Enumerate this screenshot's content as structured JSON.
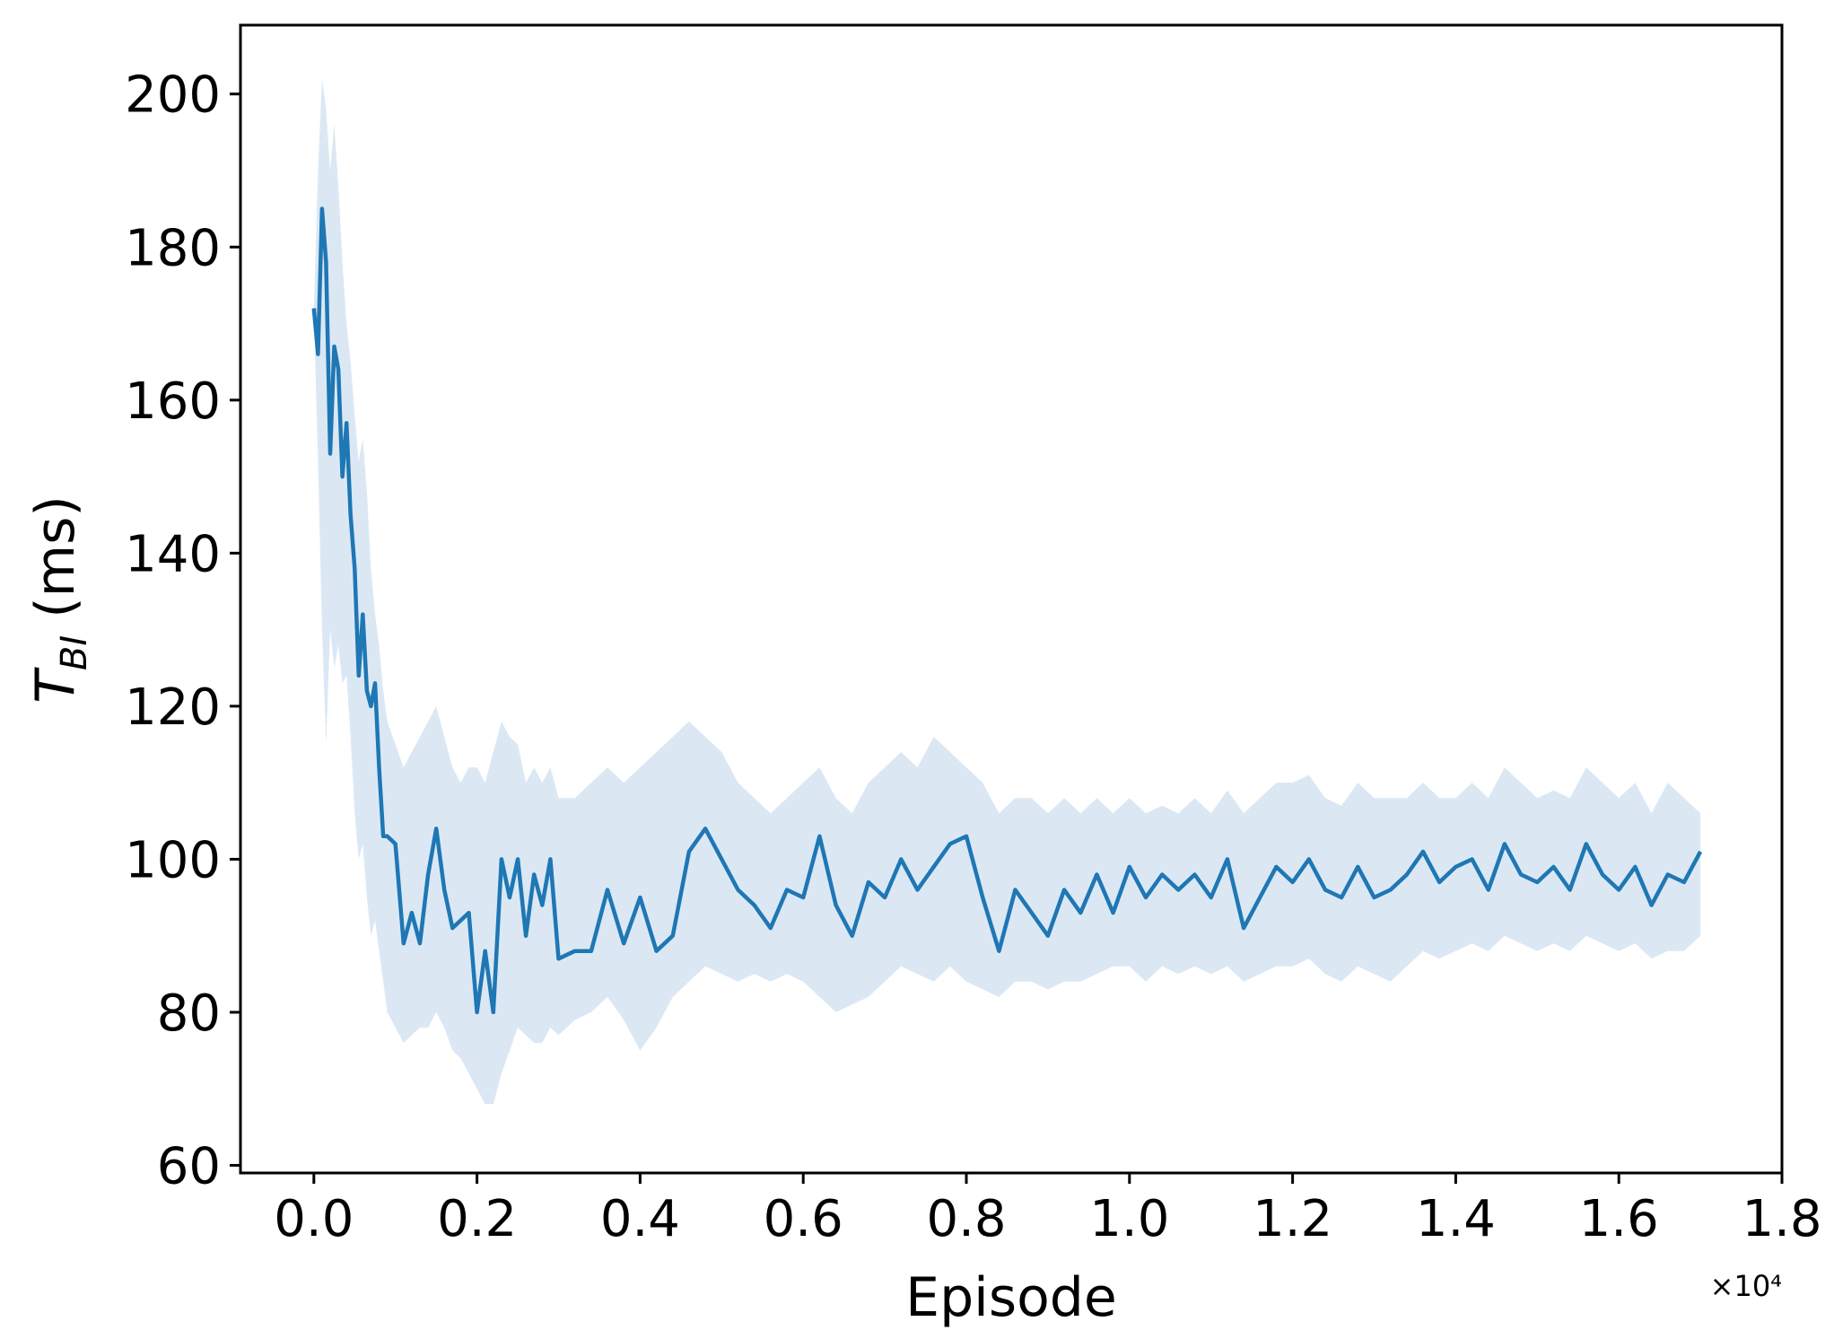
{
  "chart_data": {
    "type": "line",
    "title": "",
    "xlabel": "Episode",
    "ylabel": "T_BI (ms)",
    "ylabel_main": "T",
    "ylabel_sub": "BI",
    "ylabel_rest": " (ms)",
    "x_offset_label": "×10⁴",
    "xlim": [
      -0.09,
      1.8
    ],
    "ylim": [
      59,
      209
    ],
    "xticks": [
      0.0,
      0.2,
      0.4,
      0.6,
      0.8,
      1.0,
      1.2,
      1.4,
      1.6,
      1.8
    ],
    "xtick_labels": [
      "0.0",
      "0.2",
      "0.4",
      "0.6",
      "0.8",
      "1.0",
      "1.2",
      "1.4",
      "1.6",
      "1.8"
    ],
    "yticks": [
      60,
      80,
      100,
      120,
      140,
      160,
      180,
      200
    ],
    "ytick_labels": [
      "60",
      "80",
      "100",
      "120",
      "140",
      "160",
      "180",
      "200"
    ],
    "grid": false,
    "legend": "none",
    "colors": {
      "line": "#1f77b4",
      "band": "#dbe8f4"
    },
    "series": [
      {
        "x": [
          0.0,
          0.005,
          0.01,
          0.015,
          0.02,
          0.025,
          0.03,
          0.035,
          0.04,
          0.045,
          0.05,
          0.055,
          0.06,
          0.065,
          0.07,
          0.075,
          0.08,
          0.085,
          0.09,
          0.1,
          0.11,
          0.12,
          0.13,
          0.14,
          0.15,
          0.16,
          0.17,
          0.18,
          0.19,
          0.2,
          0.21,
          0.22,
          0.23,
          0.24,
          0.25,
          0.26,
          0.27,
          0.28,
          0.29,
          0.3,
          0.32,
          0.34,
          0.36,
          0.38,
          0.4,
          0.42,
          0.44,
          0.46,
          0.48,
          0.5,
          0.52,
          0.54,
          0.56,
          0.58,
          0.6,
          0.62,
          0.64,
          0.66,
          0.68,
          0.7,
          0.72,
          0.74,
          0.76,
          0.78,
          0.8,
          0.82,
          0.84,
          0.86,
          0.88,
          0.9,
          0.92,
          0.94,
          0.96,
          0.98,
          1.0,
          1.02,
          1.04,
          1.06,
          1.08,
          1.1,
          1.12,
          1.14,
          1.16,
          1.18,
          1.2,
          1.22,
          1.24,
          1.26,
          1.28,
          1.3,
          1.32,
          1.34,
          1.36,
          1.38,
          1.4,
          1.42,
          1.44,
          1.46,
          1.48,
          1.5,
          1.52,
          1.54,
          1.56,
          1.58,
          1.6,
          1.62,
          1.64,
          1.66,
          1.68,
          1.7
        ],
        "y": [
          172,
          166,
          185,
          178,
          153,
          167,
          164,
          150,
          157,
          145,
          138,
          124,
          132,
          122,
          120,
          123,
          112,
          103,
          103,
          102,
          89,
          93,
          89,
          98,
          104,
          96,
          91,
          92,
          93,
          80,
          88,
          80,
          100,
          95,
          100,
          90,
          98,
          94,
          100,
          87,
          88,
          88,
          96,
          89,
          95,
          88,
          90,
          101,
          104,
          100,
          96,
          94,
          91,
          96,
          95,
          103,
          94,
          90,
          97,
          95,
          100,
          96,
          99,
          102,
          103,
          95,
          88,
          96,
          93,
          90,
          96,
          93,
          98,
          93,
          99,
          95,
          98,
          96,
          98,
          95,
          100,
          91,
          95,
          99,
          97,
          100,
          96,
          95,
          99,
          95,
          96,
          98,
          101,
          97,
          99,
          100,
          96,
          102,
          98,
          97,
          99,
          96,
          102,
          98,
          96,
          99,
          94,
          98,
          97,
          101
        ],
        "lower": [
          172,
          152,
          130,
          115,
          130,
          125,
          128,
          123,
          124,
          116,
          106,
          100,
          102,
          95,
          90,
          92,
          88,
          84,
          80,
          78,
          76,
          77,
          78,
          78,
          80,
          78,
          75,
          74,
          72,
          70,
          68,
          68,
          72,
          75,
          78,
          77,
          76,
          76,
          78,
          77,
          79,
          80,
          82,
          79,
          75,
          78,
          82,
          84,
          86,
          85,
          84,
          85,
          84,
          85,
          84,
          82,
          80,
          81,
          82,
          84,
          86,
          85,
          84,
          86,
          84,
          83,
          82,
          84,
          84,
          83,
          84,
          84,
          85,
          86,
          86,
          84,
          86,
          85,
          86,
          85,
          86,
          84,
          85,
          86,
          86,
          87,
          85,
          84,
          86,
          85,
          84,
          86,
          88,
          87,
          88,
          89,
          88,
          90,
          89,
          88,
          89,
          88,
          90,
          89,
          88,
          89,
          87,
          88,
          88,
          90
        ],
        "upper": [
          172,
          190,
          202,
          198,
          190,
          196,
          188,
          178,
          170,
          165,
          158,
          152,
          155,
          148,
          138,
          132,
          128,
          122,
          118,
          115,
          112,
          114,
          116,
          118,
          120,
          116,
          112,
          110,
          112,
          112,
          110,
          114,
          118,
          116,
          115,
          110,
          112,
          110,
          112,
          108,
          108,
          110,
          112,
          110,
          112,
          114,
          116,
          118,
          116,
          114,
          110,
          108,
          106,
          108,
          110,
          112,
          108,
          106,
          110,
          112,
          114,
          112,
          116,
          114,
          112,
          110,
          106,
          108,
          108,
          106,
          108,
          106,
          108,
          106,
          108,
          106,
          107,
          106,
          108,
          106,
          109,
          106,
          108,
          110,
          110,
          111,
          108,
          107,
          110,
          108,
          108,
          108,
          110,
          108,
          108,
          110,
          108,
          112,
          110,
          108,
          109,
          108,
          112,
          110,
          108,
          110,
          106,
          110,
          108,
          106
        ]
      }
    ]
  }
}
